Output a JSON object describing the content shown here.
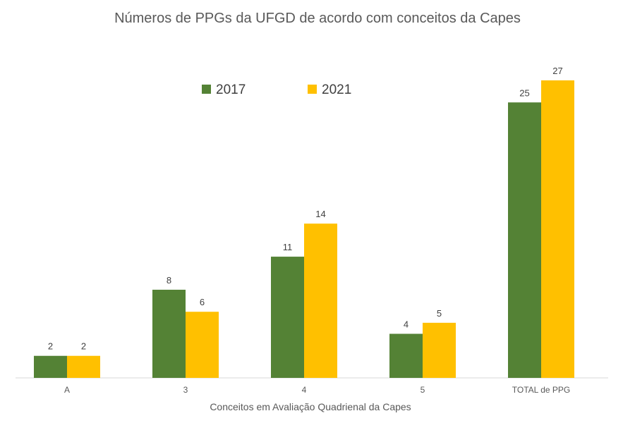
{
  "chart_data": {
    "type": "bar",
    "title": "Números de PPGs da UFGD de acordo com conceitos da Capes",
    "xlabel": "Conceitos em Avaliação Quadrienal da Capes",
    "ylabel": "",
    "categories": [
      "A",
      "3",
      "4",
      "5",
      "TOTAL de PPG"
    ],
    "series": [
      {
        "name": "2017",
        "values": [
          2,
          8,
          11,
          4,
          25
        ],
        "color": "#548235"
      },
      {
        "name": "2021",
        "values": [
          2,
          6,
          14,
          5,
          27
        ],
        "color": "#FFC000"
      }
    ],
    "ylim": [
      0,
      27
    ],
    "grid": false,
    "legend_position": "top-center"
  }
}
